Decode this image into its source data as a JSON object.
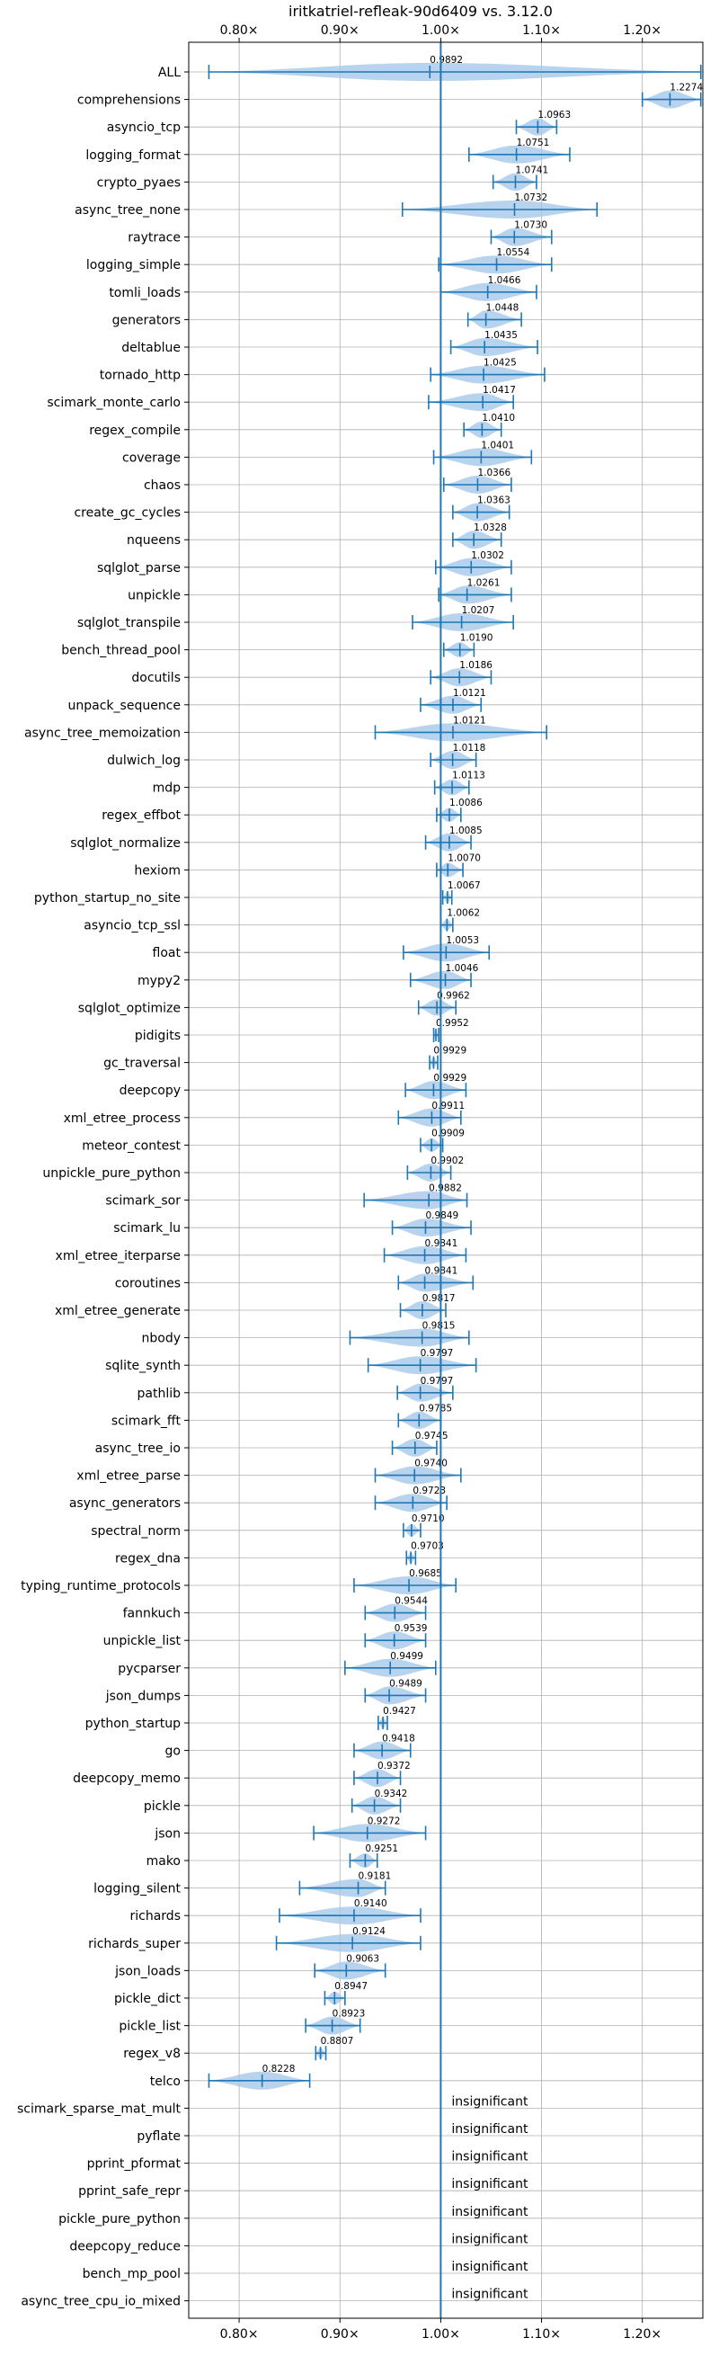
{
  "chart_data": {
    "type": "violin",
    "title": "iritkatriel-refleak-90d6409 vs. 3.12.0",
    "xlim": [
      0.75,
      1.26
    ],
    "xticks": [
      {
        "value": 0.8,
        "label": "0.80×"
      },
      {
        "value": 0.9,
        "label": "0.90×"
      },
      {
        "value": 1.0,
        "label": "1.00×"
      },
      {
        "value": 1.1,
        "label": "1.10×"
      },
      {
        "value": 1.2,
        "label": "1.20×"
      }
    ],
    "reference_line": 1.0,
    "insignificant_label": "insignificant",
    "colors": {
      "violin": "#a6c8e8",
      "line": "#1f77b4",
      "grid": "#b0b0b0"
    },
    "benchmarks": [
      {
        "name": "ALL",
        "value": 0.9892,
        "min": 0.77,
        "max": 1.258
      },
      {
        "name": "comprehensions",
        "value": 1.2274,
        "min": 1.2,
        "max": 1.258
      },
      {
        "name": "asyncio_tcp",
        "value": 1.0963,
        "min": 1.075,
        "max": 1.115
      },
      {
        "name": "logging_format",
        "value": 1.0751,
        "min": 1.028,
        "max": 1.128
      },
      {
        "name": "crypto_pyaes",
        "value": 1.0741,
        "min": 1.052,
        "max": 1.095
      },
      {
        "name": "async_tree_none",
        "value": 1.0732,
        "min": 0.962,
        "max": 1.155
      },
      {
        "name": "raytrace",
        "value": 1.073,
        "min": 1.05,
        "max": 1.11
      },
      {
        "name": "logging_simple",
        "value": 1.0554,
        "min": 0.998,
        "max": 1.11
      },
      {
        "name": "tomli_loads",
        "value": 1.0466,
        "min": 1.0,
        "max": 1.095
      },
      {
        "name": "generators",
        "value": 1.0448,
        "min": 1.027,
        "max": 1.08
      },
      {
        "name": "deltablue",
        "value": 1.0435,
        "min": 1.01,
        "max": 1.096
      },
      {
        "name": "tornado_http",
        "value": 1.0425,
        "min": 0.99,
        "max": 1.103
      },
      {
        "name": "scimark_monte_carlo",
        "value": 1.0417,
        "min": 0.988,
        "max": 1.072
      },
      {
        "name": "regex_compile",
        "value": 1.041,
        "min": 1.023,
        "max": 1.06
      },
      {
        "name": "coverage",
        "value": 1.0401,
        "min": 0.993,
        "max": 1.09
      },
      {
        "name": "chaos",
        "value": 1.0366,
        "min": 1.003,
        "max": 1.07
      },
      {
        "name": "create_gc_cycles",
        "value": 1.0363,
        "min": 1.012,
        "max": 1.068
      },
      {
        "name": "nqueens",
        "value": 1.0328,
        "min": 1.012,
        "max": 1.06
      },
      {
        "name": "sqlglot_parse",
        "value": 1.0302,
        "min": 0.995,
        "max": 1.07
      },
      {
        "name": "unpickle",
        "value": 1.0261,
        "min": 0.998,
        "max": 1.07
      },
      {
        "name": "sqlglot_transpile",
        "value": 1.0207,
        "min": 0.972,
        "max": 1.072
      },
      {
        "name": "bench_thread_pool",
        "value": 1.019,
        "min": 1.003,
        "max": 1.033
      },
      {
        "name": "docutils",
        "value": 1.0186,
        "min": 0.99,
        "max": 1.05
      },
      {
        "name": "unpack_sequence",
        "value": 1.0121,
        "min": 0.98,
        "max": 1.04
      },
      {
        "name": "async_tree_memoization",
        "value": 1.0121,
        "min": 0.935,
        "max": 1.105
      },
      {
        "name": "dulwich_log",
        "value": 1.0118,
        "min": 0.99,
        "max": 1.035
      },
      {
        "name": "mdp",
        "value": 1.0113,
        "min": 0.994,
        "max": 1.028
      },
      {
        "name": "regex_effbot",
        "value": 1.0086,
        "min": 0.996,
        "max": 1.02
      },
      {
        "name": "sqlglot_normalize",
        "value": 1.0085,
        "min": 0.985,
        "max": 1.03
      },
      {
        "name": "hexiom",
        "value": 1.007,
        "min": 0.996,
        "max": 1.022
      },
      {
        "name": "python_startup_no_site",
        "value": 1.0067,
        "min": 1.002,
        "max": 1.011
      },
      {
        "name": "asyncio_tcp_ssl",
        "value": 1.0062,
        "min": 1.0,
        "max": 1.012
      },
      {
        "name": "float",
        "value": 1.0053,
        "min": 0.963,
        "max": 1.048
      },
      {
        "name": "mypy2",
        "value": 1.0046,
        "min": 0.97,
        "max": 1.03
      },
      {
        "name": "sqlglot_optimize",
        "value": 0.9962,
        "min": 0.978,
        "max": 1.015
      },
      {
        "name": "pidigits",
        "value": 0.9952,
        "min": 0.993,
        "max": 0.998
      },
      {
        "name": "gc_traversal",
        "value": 0.9929,
        "min": 0.989,
        "max": 0.997
      },
      {
        "name": "deepcopy",
        "value": 0.9929,
        "min": 0.965,
        "max": 1.025
      },
      {
        "name": "xml_etree_process",
        "value": 0.9911,
        "min": 0.958,
        "max": 1.02
      },
      {
        "name": "meteor_contest",
        "value": 0.9909,
        "min": 0.98,
        "max": 1.002
      },
      {
        "name": "unpickle_pure_python",
        "value": 0.9902,
        "min": 0.967,
        "max": 1.01
      },
      {
        "name": "scimark_sor",
        "value": 0.9882,
        "min": 0.924,
        "max": 1.026
      },
      {
        "name": "scimark_lu",
        "value": 0.9849,
        "min": 0.952,
        "max": 1.03
      },
      {
        "name": "xml_etree_iterparse",
        "value": 0.9841,
        "min": 0.944,
        "max": 1.025
      },
      {
        "name": "coroutines",
        "value": 0.9841,
        "min": 0.958,
        "max": 1.032
      },
      {
        "name": "xml_etree_generate",
        "value": 0.9817,
        "min": 0.96,
        "max": 1.005
      },
      {
        "name": "nbody",
        "value": 0.9815,
        "min": 0.91,
        "max": 1.028
      },
      {
        "name": "sqlite_synth",
        "value": 0.9797,
        "min": 0.928,
        "max": 1.035
      },
      {
        "name": "pathlib",
        "value": 0.9797,
        "min": 0.957,
        "max": 1.012
      },
      {
        "name": "scimark_fft",
        "value": 0.9785,
        "min": 0.958,
        "max": 1.0
      },
      {
        "name": "async_tree_io",
        "value": 0.9745,
        "min": 0.952,
        "max": 0.996
      },
      {
        "name": "xml_etree_parse",
        "value": 0.974,
        "min": 0.935,
        "max": 1.02
      },
      {
        "name": "async_generators",
        "value": 0.9723,
        "min": 0.935,
        "max": 1.006
      },
      {
        "name": "spectral_norm",
        "value": 0.971,
        "min": 0.963,
        "max": 0.98
      },
      {
        "name": "regex_dna",
        "value": 0.9703,
        "min": 0.966,
        "max": 0.975
      },
      {
        "name": "typing_runtime_protocols",
        "value": 0.9685,
        "min": 0.914,
        "max": 1.015
      },
      {
        "name": "fannkuch",
        "value": 0.9544,
        "min": 0.925,
        "max": 0.985
      },
      {
        "name": "unpickle_list",
        "value": 0.9539,
        "min": 0.925,
        "max": 0.985
      },
      {
        "name": "pycparser",
        "value": 0.9499,
        "min": 0.905,
        "max": 0.995
      },
      {
        "name": "json_dumps",
        "value": 0.9489,
        "min": 0.925,
        "max": 0.985
      },
      {
        "name": "python_startup",
        "value": 0.9427,
        "min": 0.938,
        "max": 0.947
      },
      {
        "name": "go",
        "value": 0.9418,
        "min": 0.914,
        "max": 0.97
      },
      {
        "name": "deepcopy_memo",
        "value": 0.9372,
        "min": 0.914,
        "max": 0.96
      },
      {
        "name": "pickle",
        "value": 0.9342,
        "min": 0.912,
        "max": 0.96
      },
      {
        "name": "json",
        "value": 0.9272,
        "min": 0.874,
        "max": 0.985
      },
      {
        "name": "mako",
        "value": 0.9251,
        "min": 0.91,
        "max": 0.937
      },
      {
        "name": "logging_silent",
        "value": 0.9181,
        "min": 0.86,
        "max": 0.945
      },
      {
        "name": "richards",
        "value": 0.914,
        "min": 0.84,
        "max": 0.98
      },
      {
        "name": "richards_super",
        "value": 0.9124,
        "min": 0.837,
        "max": 0.98
      },
      {
        "name": "json_loads",
        "value": 0.9063,
        "min": 0.875,
        "max": 0.945
      },
      {
        "name": "pickle_dict",
        "value": 0.8947,
        "min": 0.885,
        "max": 0.905
      },
      {
        "name": "pickle_list",
        "value": 0.8923,
        "min": 0.866,
        "max": 0.92
      },
      {
        "name": "regex_v8",
        "value": 0.8807,
        "min": 0.876,
        "max": 0.886
      },
      {
        "name": "telco",
        "value": 0.8228,
        "min": 0.77,
        "max": 0.87
      },
      {
        "name": "scimark_sparse_mat_mult",
        "insignificant": true
      },
      {
        "name": "pyflate",
        "insignificant": true
      },
      {
        "name": "pprint_pformat",
        "insignificant": true
      },
      {
        "name": "pprint_safe_repr",
        "insignificant": true
      },
      {
        "name": "pickle_pure_python",
        "insignificant": true
      },
      {
        "name": "deepcopy_reduce",
        "insignificant": true
      },
      {
        "name": "bench_mp_pool",
        "insignificant": true
      },
      {
        "name": "async_tree_cpu_io_mixed",
        "insignificant": true
      }
    ]
  }
}
